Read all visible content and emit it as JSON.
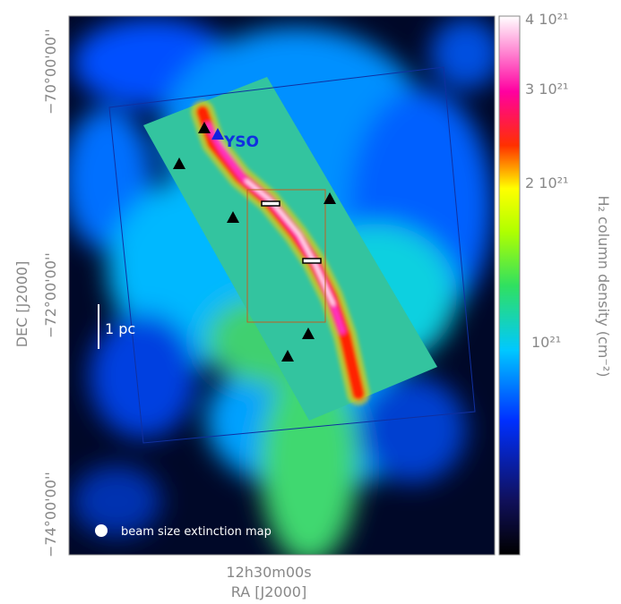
{
  "axes": {
    "y_ticks": [
      "−70°00'00''",
      "−72°00'00''",
      "−74°00'00''"
    ],
    "y_label": "DEC [J2000]",
    "x_tick": "12h30m00s",
    "x_label": "RA [J2000]"
  },
  "colorbar": {
    "ticks": [
      "4 10²¹",
      "3 10²¹",
      "2 10²¹",
      "10²¹"
    ],
    "label": "H₂ column density (cm⁻²)"
  },
  "annotations": {
    "yso": "YSO",
    "scale": "1 pc",
    "beam": "beam size extinction map"
  }
}
